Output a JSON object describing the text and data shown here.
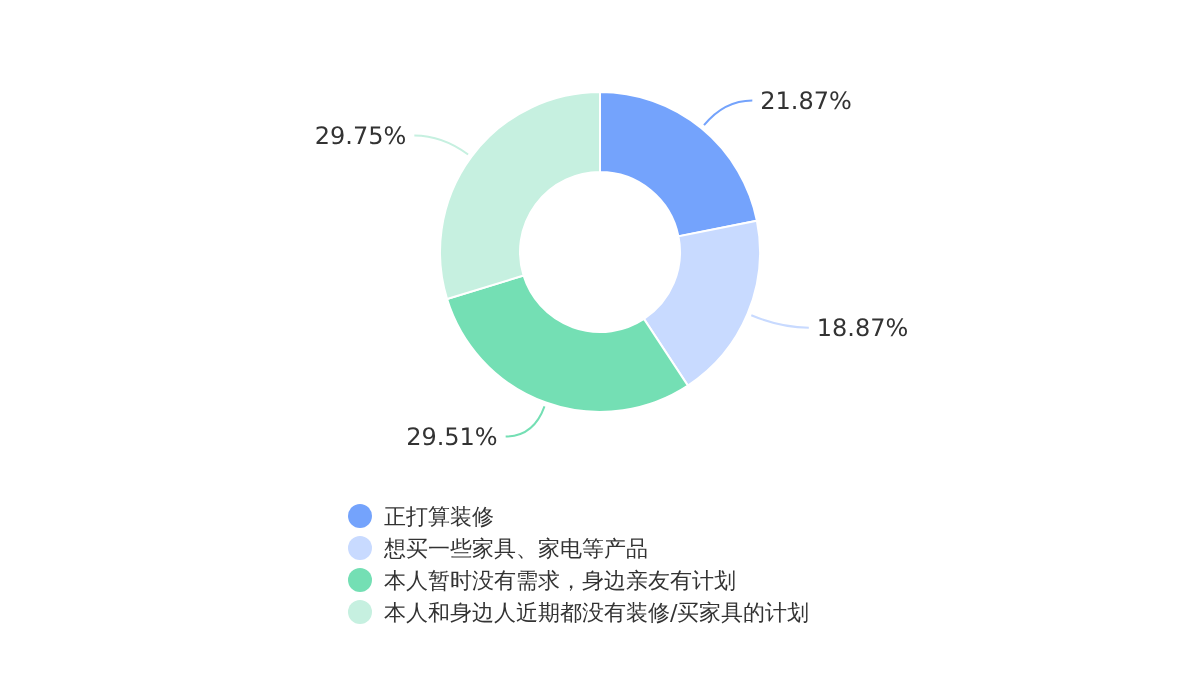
{
  "chart_data": {
    "type": "donut",
    "categories": [
      "正打算装修",
      "想买一些家具、家电等产品",
      "本人暂时没有需求，身边亲友有计划",
      "本人和身边人近期都没有装修/买家具的计划"
    ],
    "values": [
      21.87,
      18.87,
      29.51,
      29.75
    ],
    "value_labels": [
      "21.87%",
      "18.87%",
      "29.51%",
      "29.75%"
    ],
    "colors": [
      "#74a3fc",
      "#c8daff",
      "#74dfb4",
      "#c6f0e0"
    ],
    "legend": "bottom"
  }
}
